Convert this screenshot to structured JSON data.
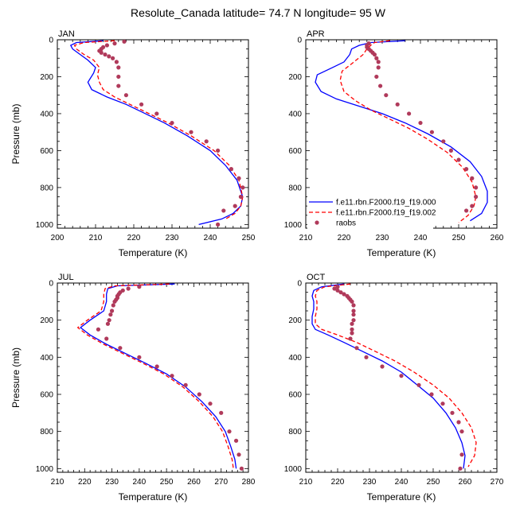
{
  "figure": {
    "title": "Resolute_Canada  latitude= 74.7 N longitude= 95 W"
  },
  "legend": {
    "placement": "bottom-right of APR panel",
    "entries": [
      {
        "label": "f.e11.rbn.F2000.f19_f19.000",
        "style": "solid",
        "color": "#0000ff"
      },
      {
        "label": "f.e11.rbn.F2000.f19_f19.002",
        "style": "dashed",
        "color": "#ff0000"
      },
      {
        "label": "raobs",
        "style": "marker",
        "color": "#b03a5b"
      }
    ]
  },
  "chart_data": [
    {
      "type": "line",
      "title": "JAN",
      "xlabel": "Temperature (K)",
      "ylabel": "Pressure (mb)",
      "xlim": [
        200,
        250
      ],
      "ylim": [
        0,
        1020
      ],
      "y_inverted": true,
      "xticks": [
        200,
        210,
        220,
        230,
        240,
        250
      ],
      "yticks": [
        0,
        200,
        400,
        600,
        800,
        1000
      ],
      "series": [
        {
          "name": "f.e11.rbn.F2000.f19_f19.000",
          "style": "solid",
          "color": "#0000ff",
          "x": [
            212,
            205,
            203.5,
            204,
            206,
            208,
            210,
            209.5,
            208,
            209,
            213,
            218,
            222,
            228,
            234,
            240,
            244,
            247,
            248.5,
            248,
            246,
            243,
            237
          ],
          "y": [
            5,
            15,
            30,
            50,
            80,
            110,
            150,
            180,
            230,
            270,
            310,
            350,
            390,
            450,
            520,
            600,
            680,
            760,
            850,
            900,
            940,
            970,
            1000
          ]
        },
        {
          "name": "f.e11.rbn.F2000.f19_f19.002",
          "style": "dashed",
          "color": "#ff0000",
          "x": [
            215,
            207,
            204.5,
            205,
            207,
            209.5,
            211,
            210.5,
            211,
            212,
            215,
            219,
            223,
            229,
            235,
            241,
            245,
            247.5,
            248.5,
            248,
            246.5,
            244
          ],
          "y": [
            5,
            15,
            30,
            50,
            80,
            110,
            150,
            190,
            230,
            270,
            310,
            350,
            390,
            450,
            520,
            600,
            680,
            760,
            850,
            900,
            940,
            970
          ]
        },
        {
          "name": "raobs",
          "style": "marker",
          "color": "#b03a5b",
          "x": [
            217.5,
            215,
            213,
            212,
            211.5,
            211,
            211.5,
            212.5,
            213.5,
            214.5,
            215.5,
            216,
            216,
            216,
            218,
            222,
            226,
            230,
            235,
            239,
            242,
            245.5,
            247.5,
            248.5,
            248,
            246.5,
            243.5,
            242
          ],
          "y": [
            10,
            20,
            30,
            40,
            50,
            60,
            70,
            80,
            90,
            100,
            120,
            150,
            200,
            250,
            300,
            350,
            400,
            450,
            500,
            550,
            600,
            700,
            750,
            800,
            850,
            900,
            925,
            1000
          ]
        }
      ]
    },
    {
      "type": "line",
      "title": "APR",
      "xlabel": "Temperature (K)",
      "ylabel": "",
      "xlim": [
        210,
        260
      ],
      "ylim": [
        0,
        1020
      ],
      "y_inverted": true,
      "xticks": [
        210,
        220,
        230,
        240,
        250,
        260
      ],
      "yticks": [
        0,
        200,
        400,
        600,
        800,
        1000
      ],
      "series": [
        {
          "name": "f.e11.rbn.F2000.f19_f19.000",
          "style": "solid",
          "color": "#0000ff",
          "x": [
            236,
            227,
            224,
            222,
            221.5,
            220,
            217,
            213,
            212.5,
            214,
            218,
            224,
            230,
            236,
            242,
            248,
            253,
            256,
            257.5,
            257.5,
            256,
            253
          ],
          "y": [
            5,
            15,
            30,
            50,
            80,
            120,
            150,
            190,
            230,
            280,
            320,
            360,
            400,
            450,
            510,
            580,
            660,
            740,
            820,
            880,
            940,
            980
          ]
        },
        {
          "name": "f.e11.rbn.F2000.f19_f19.002",
          "style": "dashed",
          "color": "#ff0000",
          "x": [
            232,
            228,
            227,
            226,
            225,
            222,
            219.5,
            219,
            220,
            223,
            227,
            232,
            237,
            242,
            247,
            251,
            253.5,
            254.5,
            254,
            252.5,
            250
          ],
          "y": [
            5,
            15,
            30,
            50,
            80,
            130,
            170,
            220,
            280,
            330,
            380,
            430,
            480,
            540,
            610,
            690,
            770,
            850,
            900,
            950,
            990
          ]
        },
        {
          "name": "raobs",
          "style": "marker",
          "color": "#b03a5b",
          "x": [
            226.5,
            226,
            226,
            226.5,
            227,
            227.5,
            228,
            228.5,
            229,
            229,
            228.5,
            229.5,
            231,
            234,
            237,
            240,
            243,
            246,
            248,
            250,
            252,
            253.5,
            254.5,
            254.5,
            253.5,
            252
          ],
          "y": [
            20,
            30,
            40,
            50,
            60,
            70,
            80,
            100,
            120,
            150,
            200,
            250,
            300,
            350,
            400,
            450,
            500,
            550,
            600,
            650,
            700,
            750,
            800,
            850,
            900,
            925
          ]
        }
      ]
    },
    {
      "type": "line",
      "title": "JUL",
      "xlabel": "Temperature (K)",
      "ylabel": "Pressure (mb)",
      "xlim": [
        210,
        280
      ],
      "ylim": [
        0,
        1020
      ],
      "y_inverted": true,
      "xticks": [
        210,
        220,
        230,
        240,
        250,
        260,
        270,
        280
      ],
      "yticks": [
        0,
        200,
        400,
        600,
        800,
        1000
      ],
      "series": [
        {
          "name": "f.e11.rbn.F2000.f19_f19.000",
          "style": "solid",
          "color": "#0000ff",
          "x": [
            253,
            232,
            228.5,
            228,
            228,
            227,
            222,
            218.5,
            222,
            228,
            235,
            242,
            250,
            257,
            263,
            268,
            271.5,
            273.5,
            275,
            275.5
          ],
          "y": [
            5,
            15,
            30,
            60,
            100,
            150,
            200,
            240,
            280,
            330,
            380,
            430,
            490,
            560,
            640,
            720,
            800,
            880,
            950,
            1000
          ]
        },
        {
          "name": "f.e11.rbn.F2000.f19_f19.002",
          "style": "dashed",
          "color": "#ff0000",
          "x": [
            251,
            231,
            227.5,
            227,
            227,
            226,
            221,
            217.5,
            221,
            227,
            234,
            241,
            249,
            256,
            262,
            267,
            270.5,
            272.5,
            274,
            274.5
          ],
          "y": [
            5,
            15,
            30,
            60,
            100,
            150,
            200,
            240,
            280,
            330,
            380,
            430,
            490,
            560,
            640,
            720,
            800,
            880,
            950,
            1000
          ]
        },
        {
          "name": "raobs",
          "style": "marker",
          "color": "#b03a5b",
          "x": [
            240,
            236,
            234,
            233,
            232.5,
            232,
            232,
            231.5,
            231,
            230.5,
            230,
            229.5,
            229,
            228.5,
            225,
            228,
            233,
            240,
            246.5,
            252,
            257,
            262,
            266,
            270,
            273,
            275.5,
            276.5,
            277.5
          ],
          "y": [
            20,
            30,
            40,
            50,
            60,
            70,
            80,
            90,
            100,
            120,
            150,
            170,
            200,
            220,
            250,
            300,
            350,
            400,
            450,
            500,
            550,
            600,
            650,
            700,
            800,
            850,
            925,
            1000
          ]
        }
      ]
    },
    {
      "type": "line",
      "title": "OCT",
      "xlabel": "Temperature (K)",
      "ylabel": "",
      "xlim": [
        210,
        270
      ],
      "ylim": [
        0,
        1020
      ],
      "y_inverted": true,
      "xticks": [
        210,
        220,
        230,
        240,
        250,
        260,
        270
      ],
      "yticks": [
        0,
        200,
        400,
        600,
        800,
        1000
      ],
      "series": [
        {
          "name": "f.e11.rbn.F2000.f19_f19.000",
          "style": "solid",
          "color": "#0000ff",
          "x": [
            222,
            215,
            212.5,
            212,
            212.5,
            212.5,
            212,
            212,
            213,
            217,
            222,
            228,
            234,
            240,
            245,
            250,
            254,
            257,
            259,
            260,
            259.5
          ],
          "y": [
            5,
            20,
            40,
            70,
            100,
            140,
            180,
            220,
            250,
            280,
            320,
            370,
            420,
            480,
            550,
            620,
            700,
            780,
            860,
            930,
            1000
          ]
        },
        {
          "name": "f.e11.rbn.F2000.f19_f19.002",
          "style": "dashed",
          "color": "#ff0000",
          "x": [
            224,
            216,
            213.5,
            213,
            213.5,
            213.5,
            213,
            213,
            215,
            220,
            226,
            232,
            238,
            244,
            250,
            255,
            259,
            262,
            263.5,
            263,
            261
          ],
          "y": [
            5,
            20,
            40,
            70,
            100,
            140,
            180,
            220,
            250,
            280,
            320,
            370,
            420,
            480,
            550,
            620,
            700,
            780,
            860,
            930,
            990
          ]
        },
        {
          "name": "raobs",
          "style": "marker",
          "color": "#b03a5b",
          "x": [
            220,
            219,
            220,
            221,
            222,
            223,
            223.5,
            224,
            224.5,
            225,
            225,
            225,
            225,
            224.5,
            224.5,
            224.5,
            224,
            226,
            229,
            234,
            240,
            245.5,
            249.5,
            253,
            256,
            258,
            259,
            259,
            258.5
          ],
          "y": [
            20,
            30,
            40,
            50,
            60,
            70,
            80,
            90,
            100,
            120,
            150,
            170,
            200,
            220,
            250,
            270,
            300,
            350,
            400,
            450,
            500,
            550,
            600,
            650,
            700,
            750,
            800,
            925,
            1000
          ]
        }
      ]
    }
  ]
}
